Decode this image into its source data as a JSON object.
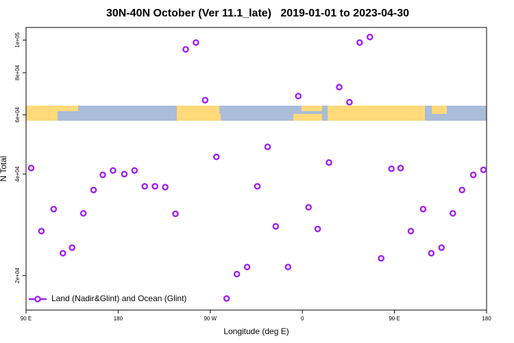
{
  "chart_data": {
    "type": "scatter",
    "title": "30N-40N October (Ver 11.1_late)   2019-01-01 to 2023-04-30",
    "x_label": "Longitude (deg E)",
    "y_label": "N Total",
    "x": [
      95,
      105,
      117,
      126,
      135,
      146,
      156,
      165,
      175,
      186,
      196,
      206,
      216,
      226,
      236,
      246,
      256,
      265,
      276,
      286,
      296,
      306,
      316,
      326,
      334,
      346,
      356,
      366,
      375,
      386,
      396,
      406,
      416,
      426,
      437,
      447,
      456,
      466,
      478,
      486,
      496,
      507,
      516,
      527,
      537
    ],
    "series": [
      {
        "name": "Land (Nadir&Glint) and Ocean (Glint)",
        "color": "#a020f0",
        "values": [
          41700,
          27100,
          31500,
          23300,
          24200,
          30600,
          35900,
          39800,
          41000,
          40000,
          41000,
          36800,
          36800,
          36600,
          30500,
          93800,
          98300,
          66300,
          45000,
          17100,
          20200,
          21200,
          36800,
          48200,
          28000,
          21200,
          68200,
          31900,
          27500,
          43300,
          72500,
          65400,
          98300,
          102100,
          22500,
          41500,
          41700,
          27100,
          31500,
          23300,
          24200,
          30600,
          35900,
          39800,
          41200
        ]
      }
    ],
    "xlim": [
      90,
      540
    ],
    "xticks": [
      {
        "value": 90,
        "label": "90 E"
      },
      180,
      {
        "value": 270,
        "label": "90 W"
      },
      {
        "value": 360,
        "label": "0"
      },
      {
        "value": 450,
        "label": "90 E"
      },
      {
        "value": 540,
        "label": "180"
      }
    ],
    "ylim": [
      15800,
      109000
    ],
    "log_y": true,
    "yticks": [
      {
        "value": 20000,
        "label": "2e+04"
      },
      {
        "value": 40000,
        "label": "4e+04"
      },
      {
        "value": 60000,
        "label": "6e+04"
      },
      {
        "value": 80000,
        "label": "8e+04"
      },
      {
        "value": 100000,
        "label": "1e+05"
      }
    ],
    "legend": "bottom-left"
  }
}
